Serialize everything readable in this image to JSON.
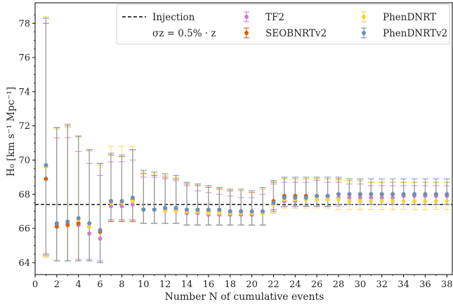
{
  "chart_data": {
    "type": "scatter",
    "xlabel": "Number N of cumulative events",
    "ylabel": "H₀ [km s⁻¹ Mpc⁻¹]",
    "xlim": [
      0,
      38.5
    ],
    "ylim": [
      63.3,
      79.2
    ],
    "xticks": [
      0,
      2,
      4,
      6,
      8,
      10,
      12,
      14,
      16,
      18,
      20,
      22,
      24,
      26,
      28,
      30,
      32,
      34,
      36,
      38
    ],
    "yticks": [
      64,
      66,
      68,
      70,
      72,
      74,
      76,
      78
    ],
    "injection": 67.4,
    "grid": false,
    "legend_placement": "top-right",
    "legend": {
      "injection_label": "Injection",
      "note": "σz = 0.5% · z"
    },
    "x": [
      1,
      2,
      3,
      4,
      5,
      6,
      7,
      8,
      9,
      10,
      11,
      12,
      13,
      14,
      15,
      16,
      17,
      18,
      19,
      20,
      21,
      22,
      23,
      24,
      25,
      26,
      27,
      28,
      29,
      30,
      31,
      32,
      33,
      34,
      35,
      36,
      37,
      38
    ],
    "series": [
      {
        "name": "TF2",
        "color": "#d17ec6",
        "y": [
          69.7,
          66.2,
          66.3,
          66.2,
          65.7,
          65.4,
          67.3,
          67.3,
          67.4,
          67.1,
          67.1,
          67.1,
          67.0,
          66.9,
          66.9,
          66.8,
          66.8,
          66.8,
          66.8,
          66.8,
          66.9,
          67.4,
          67.6,
          67.6,
          67.7,
          67.7,
          67.7,
          67.8,
          67.8,
          67.8,
          67.8,
          67.8,
          67.8,
          67.9,
          67.9,
          67.9,
          67.9,
          67.9
        ],
        "lo": [
          64.5,
          64.1,
          64.1,
          64.2,
          64.2,
          64.1,
          66.4,
          66.4,
          66.4,
          66.3,
          66.3,
          66.3,
          66.3,
          66.2,
          66.2,
          66.2,
          66.2,
          66.2,
          66.2,
          66.2,
          66.2,
          66.9,
          67.2,
          67.2,
          67.3,
          67.3,
          67.3,
          67.3,
          67.4,
          67.4,
          67.4,
          67.4,
          67.4,
          67.4,
          67.4,
          67.4,
          67.4,
          67.4
        ],
        "hi": [
          78.3,
          71.3,
          71.3,
          70.5,
          69.8,
          69.1,
          69.9,
          69.9,
          70.0,
          69.0,
          69.0,
          68.9,
          68.8,
          68.5,
          68.2,
          68.1,
          68.0,
          67.9,
          67.8,
          67.8,
          68.0,
          68.6,
          68.7,
          68.7,
          68.7,
          68.8,
          68.7,
          68.7,
          68.6,
          68.6,
          68.5,
          68.5,
          68.5,
          68.5,
          68.5,
          68.5,
          68.5,
          68.5
        ]
      },
      {
        "name": "SEOBNRTv2",
        "color": "#d4600e",
        "y": [
          68.9,
          66.1,
          66.2,
          66.3,
          66.1,
          65.8,
          67.6,
          67.6,
          67.7,
          67.1,
          67.1,
          67.2,
          67.1,
          67.0,
          67.0,
          67.0,
          67.0,
          67.0,
          66.9,
          66.9,
          67.0,
          67.6,
          67.9,
          67.9,
          67.9,
          67.9,
          67.9,
          68.0,
          68.0,
          68.0,
          68.0,
          68.0,
          68.0,
          68.0,
          68.0,
          68.0,
          68.0,
          68.0
        ],
        "lo": [
          64.4,
          64.1,
          64.1,
          64.1,
          64.1,
          64.0,
          66.4,
          66.4,
          66.4,
          66.3,
          66.3,
          66.3,
          66.3,
          66.2,
          66.2,
          66.2,
          66.2,
          66.2,
          66.2,
          66.2,
          66.2,
          67.1,
          67.3,
          67.3,
          67.3,
          67.3,
          67.3,
          67.4,
          67.4,
          67.4,
          67.4,
          67.4,
          67.4,
          67.4,
          67.4,
          67.4,
          67.4,
          67.4
        ],
        "hi": [
          78.0,
          71.9,
          72.0,
          71.4,
          70.6,
          69.8,
          70.3,
          70.2,
          70.6,
          69.2,
          69.1,
          69.0,
          68.9,
          68.6,
          68.5,
          68.4,
          68.3,
          68.2,
          68.2,
          68.1,
          68.3,
          68.7,
          68.9,
          68.9,
          68.9,
          68.9,
          68.9,
          68.9,
          68.8,
          68.8,
          68.7,
          68.7,
          68.7,
          68.7,
          68.7,
          68.7,
          68.7,
          68.7
        ]
      },
      {
        "name": "PhenDNRT",
        "color": "#f5d63d",
        "y": [
          69.6,
          66.3,
          66.4,
          66.5,
          66.1,
          65.9,
          67.5,
          67.5,
          67.6,
          67.1,
          67.1,
          67.0,
          67.0,
          67.0,
          67.0,
          66.9,
          66.9,
          66.9,
          66.9,
          66.9,
          66.9,
          67.4,
          67.7,
          67.7,
          67.7,
          67.7,
          67.7,
          67.7,
          67.6,
          67.6,
          67.6,
          67.6,
          67.6,
          67.6,
          67.6,
          67.6,
          67.6,
          67.6
        ],
        "lo": [
          64.3,
          64.1,
          64.1,
          64.1,
          64.1,
          64.0,
          66.5,
          66.5,
          66.5,
          66.3,
          66.3,
          66.3,
          66.3,
          66.2,
          66.2,
          66.2,
          66.2,
          66.2,
          66.2,
          66.2,
          66.2,
          66.9,
          67.2,
          67.2,
          67.2,
          67.2,
          67.2,
          67.1,
          67.1,
          67.1,
          67.1,
          67.1,
          67.1,
          67.1,
          67.1,
          67.1,
          67.1,
          67.1
        ],
        "hi": [
          78.4,
          71.8,
          71.9,
          71.3,
          70.5,
          69.7,
          70.8,
          70.8,
          70.8,
          69.3,
          69.2,
          69.1,
          69.0,
          68.7,
          68.6,
          68.5,
          68.4,
          68.3,
          68.2,
          68.2,
          68.3,
          68.8,
          68.9,
          68.9,
          68.9,
          68.9,
          68.9,
          68.8,
          68.8,
          68.8,
          68.7,
          68.7,
          68.7,
          68.7,
          68.7,
          68.7,
          68.7,
          68.7
        ]
      },
      {
        "name": "PhenDNRTv2",
        "color": "#6a8ebf",
        "y": [
          69.7,
          66.3,
          66.4,
          66.6,
          66.3,
          65.9,
          67.6,
          67.6,
          67.8,
          67.1,
          67.1,
          67.2,
          67.2,
          67.1,
          67.1,
          67.1,
          67.1,
          67.0,
          67.0,
          67.0,
          67.0,
          67.5,
          67.8,
          67.8,
          67.8,
          67.9,
          67.9,
          68.0,
          68.0,
          68.0,
          68.0,
          68.0,
          68.0,
          68.0,
          68.0,
          68.0,
          68.0,
          68.0
        ],
        "lo": [
          64.5,
          64.1,
          64.1,
          64.1,
          64.1,
          64.0,
          66.5,
          66.5,
          66.5,
          66.3,
          66.3,
          66.3,
          66.3,
          66.2,
          66.2,
          66.2,
          66.2,
          66.2,
          66.2,
          66.2,
          66.2,
          67.0,
          67.3,
          67.3,
          67.3,
          67.3,
          67.3,
          67.4,
          67.4,
          67.4,
          67.4,
          67.4,
          67.4,
          67.4,
          67.4,
          67.4,
          67.4,
          67.4
        ],
        "hi": [
          78.3,
          71.9,
          72.1,
          71.4,
          70.6,
          69.8,
          70.4,
          70.3,
          70.6,
          69.4,
          69.3,
          69.2,
          69.1,
          68.7,
          68.6,
          68.5,
          68.4,
          68.3,
          68.3,
          68.2,
          68.4,
          68.8,
          69.0,
          69.0,
          69.0,
          69.0,
          69.0,
          69.0,
          68.9,
          68.9,
          68.9,
          68.9,
          68.9,
          68.9,
          68.9,
          68.9,
          68.9,
          68.9
        ]
      }
    ]
  }
}
